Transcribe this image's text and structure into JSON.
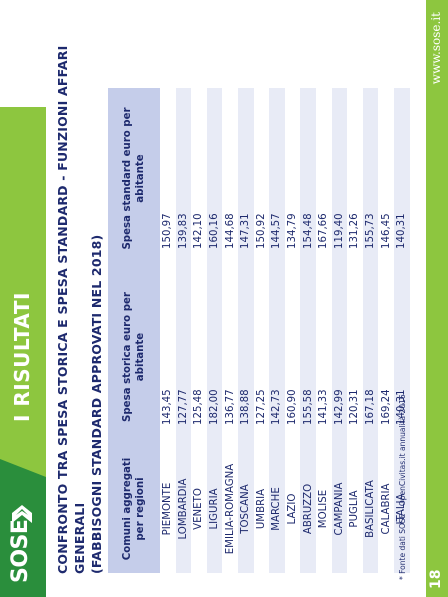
{
  "header": {
    "brand": "SOSE",
    "section_title": "I RISULTATI"
  },
  "footer": {
    "page_number": "18",
    "website": "www.sose.it"
  },
  "title": {
    "line1": "CONFRONTO TRA SPESA STORICA E SPESA STANDARD - FUNZIONI AFFARI GENERALI",
    "line2": "(FABBISOGNI STANDARD APPROVATI NEL 2018)"
  },
  "table": {
    "headers": [
      "Comuni aggregati per regioni",
      "Spesa storica euro per abitante",
      "Spesa standard euro per abitante"
    ],
    "rows": [
      [
        "PIEMONTE",
        "143,45",
        "150,97"
      ],
      [
        "LOMBARDIA",
        "127,77",
        "139,83"
      ],
      [
        "VENETO",
        "125,48",
        "142,10"
      ],
      [
        "LIGURIA",
        "182,00",
        "160,16"
      ],
      [
        "EMILIA-ROMAGNA",
        "136,77",
        "144,68"
      ],
      [
        "TOSCANA",
        "138,88",
        "147,31"
      ],
      [
        "UMBRIA",
        "127,25",
        "150,92"
      ],
      [
        "MARCHE",
        "142,73",
        "144,57"
      ],
      [
        "LAZIO",
        "160,90",
        "134,79"
      ],
      [
        "ABRUZZO",
        "155,58",
        "154,48"
      ],
      [
        "MOLISE",
        "141,33",
        "167,66"
      ],
      [
        "CAMPANIA",
        "142,99",
        "119,40"
      ],
      [
        "PUGLIA",
        "120,31",
        "131,26"
      ],
      [
        "BASILICATA",
        "167,18",
        "155,73"
      ],
      [
        "CALABRIA",
        "169,24",
        "146,45"
      ],
      [
        "ITALIA",
        "140,31",
        "140,31"
      ]
    ]
  },
  "source_note": "* Fonte dati SOSE - OpenCivitas.it annualità 2016",
  "colors": {
    "green": "#8dc63f",
    "dark_green": "#2a8e3c",
    "navy": "#1e2a6e",
    "table_header": "#c5cdea",
    "row_alt": "#e8ebf6"
  }
}
